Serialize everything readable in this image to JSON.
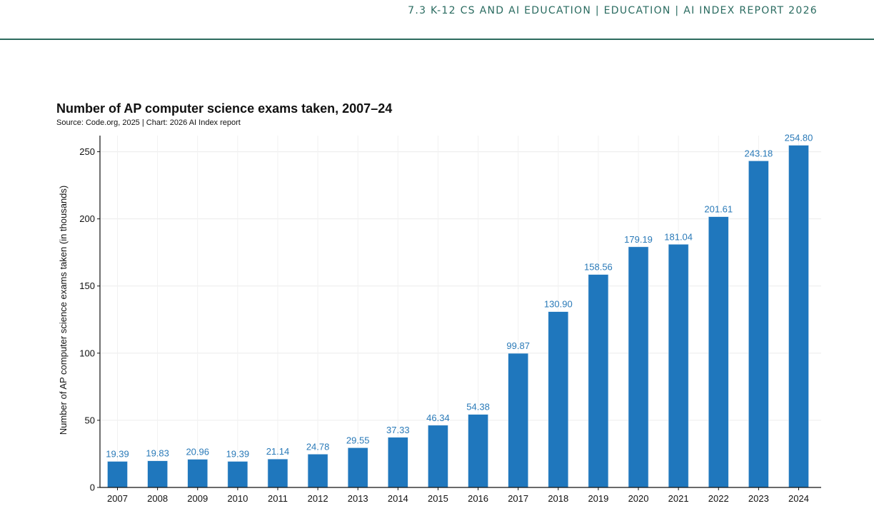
{
  "header": {
    "breadcrumb": "7.3 K-12 CS AND AI EDUCATION  |  EDUCATION  |  AI INDEX REPORT 2026"
  },
  "colors": {
    "accent": "#2c6b5e",
    "bar": "#1f77bd",
    "data_label": "#2a7ab8",
    "grid": "#ececec"
  },
  "chart_data": {
    "type": "bar",
    "title": "Number of AP computer science exams taken, 2007–24",
    "subtitle": "Source: Code.org, 2025 | Chart: 2026 AI Index report",
    "xlabel": "",
    "ylabel": "Number of AP computer science exams taken (in thousands)",
    "ylim": [
      0,
      262
    ],
    "yticks": [
      0,
      50,
      100,
      150,
      200,
      250
    ],
    "grid": true,
    "categories": [
      "2007",
      "2008",
      "2009",
      "2010",
      "2011",
      "2012",
      "2013",
      "2014",
      "2015",
      "2016",
      "2017",
      "2018",
      "2019",
      "2020",
      "2021",
      "2022",
      "2023",
      "2024"
    ],
    "values": [
      19.39,
      19.83,
      20.96,
      19.39,
      21.14,
      24.78,
      29.55,
      37.33,
      46.34,
      54.38,
      99.87,
      130.9,
      158.56,
      179.19,
      181.04,
      201.61,
      243.18,
      254.8
    ],
    "value_labels": [
      "19.39",
      "19.83",
      "20.96",
      "19.39",
      "21.14",
      "24.78",
      "29.55",
      "37.33",
      "46.34",
      "54.38",
      "99.87",
      "130.90",
      "158.56",
      "179.19",
      "181.04",
      "201.61",
      "243.18",
      "254.80"
    ]
  }
}
